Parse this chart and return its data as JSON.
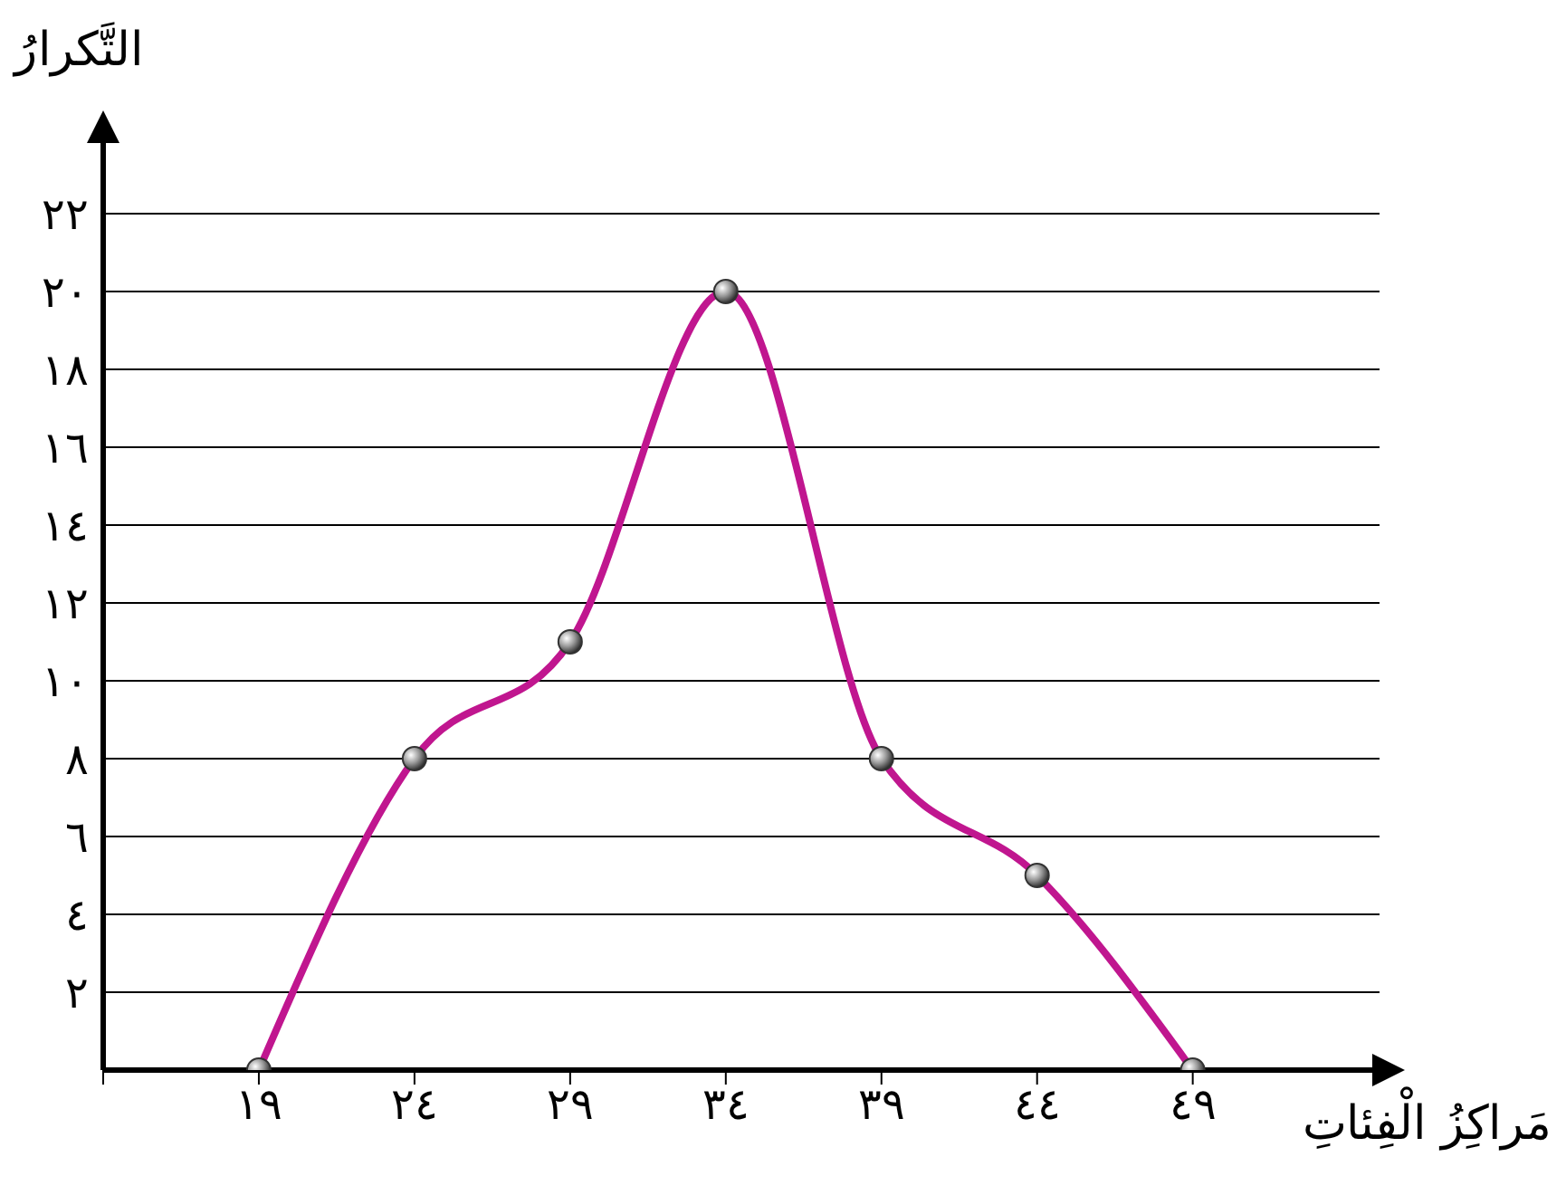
{
  "chart_data": {
    "type": "line",
    "xlabel": "مَراكِزُ الْفِئاتِ",
    "ylabel": "التَّكرارُ",
    "x": [
      19,
      24,
      29,
      34,
      39,
      44,
      49
    ],
    "series": [
      {
        "color": "#c0168f",
        "values": [
          0,
          8,
          11,
          20,
          8,
          5,
          0
        ]
      }
    ],
    "xlim": [
      14,
      55
    ],
    "xticks": [
      {
        "value": 14,
        "label": null
      },
      {
        "value": 19,
        "label": "١٩"
      },
      {
        "value": 24,
        "label": "٢٤"
      },
      {
        "value": 29,
        "label": "٢٩"
      },
      {
        "value": 34,
        "label": "٣٤"
      },
      {
        "value": 39,
        "label": "٣٩"
      },
      {
        "value": 44,
        "label": "٤٤"
      },
      {
        "value": 49,
        "label": "٤٩"
      }
    ],
    "ylim": [
      0,
      24
    ],
    "yticks": [
      {
        "value": 2,
        "label": "٢"
      },
      {
        "value": 4,
        "label": "٤"
      },
      {
        "value": 6,
        "label": "٦"
      },
      {
        "value": 8,
        "label": "٨"
      },
      {
        "value": 10,
        "label": "١٠"
      },
      {
        "value": 12,
        "label": "١٢"
      },
      {
        "value": 14,
        "label": "١٤"
      },
      {
        "value": 16,
        "label": "١٦"
      },
      {
        "value": 18,
        "label": "١٨"
      },
      {
        "value": 20,
        "label": "٢٠"
      },
      {
        "value": 22,
        "label": "٢٢"
      }
    ],
    "grid": "y",
    "marker": "circle",
    "line_style": "solid"
  }
}
